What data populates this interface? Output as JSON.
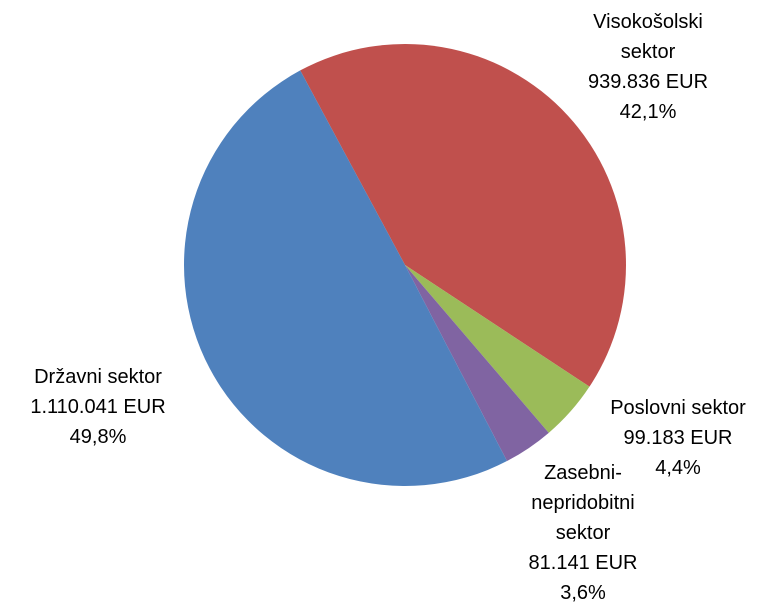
{
  "chart_data": {
    "type": "pie",
    "categories": [
      "Visokošolski sektor",
      "Poslovni sektor",
      "Zasebni-nepridobitni sektor",
      "Državni sektor"
    ],
    "values": [
      939836,
      99183,
      81141,
      1110041
    ],
    "value_labels": [
      "939.836 EUR",
      "99.183 EUR",
      "81.141 EUR",
      "1.110.041 EUR"
    ],
    "percents": [
      42.1,
      4.4,
      3.6,
      49.8
    ],
    "percent_labels": [
      "42,1%",
      "4,4%",
      "3,6%",
      "49,8%"
    ],
    "colors": [
      "#c0504d",
      "#9bbb59",
      "#8064a2",
      "#4f81bd"
    ]
  }
}
